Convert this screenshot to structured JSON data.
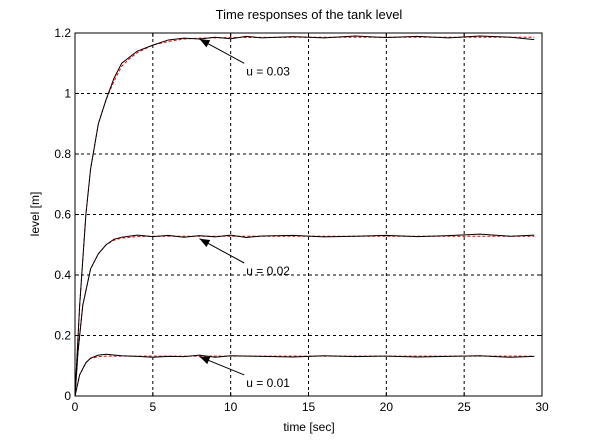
{
  "chart_data": {
    "type": "line",
    "title": "Time responses of the tank level",
    "xlabel": "time [sec]",
    "ylabel": "level [m]",
    "xlim": [
      0,
      30
    ],
    "ylim": [
      0,
      1.2
    ],
    "xticks": [
      0,
      5,
      10,
      15,
      20,
      25,
      30
    ],
    "xtick_labels": [
      "0",
      "5",
      "10",
      "15",
      "20",
      "25",
      "30"
    ],
    "yticks": [
      0,
      0.2,
      0.4,
      0.6,
      0.8,
      1,
      1.2
    ],
    "ytick_labels": [
      "0",
      "0.2",
      "0.4",
      "0.6",
      "0.8",
      "1",
      "1.2"
    ],
    "grid": true,
    "colors": {
      "measured": "#000000",
      "model": "#ff0000",
      "grid": "#000000"
    },
    "series": [
      {
        "group": "u = 0.01",
        "line": "measured",
        "x": [
          0,
          0.3,
          0.7,
          1,
          1.5,
          2,
          3,
          4,
          5,
          6,
          7,
          8,
          9,
          10,
          12,
          14,
          16,
          18,
          20,
          22,
          24,
          26,
          28,
          29.5
        ],
        "y": [
          0,
          0.07,
          0.11,
          0.125,
          0.135,
          0.138,
          0.133,
          0.131,
          0.128,
          0.131,
          0.13,
          0.135,
          0.128,
          0.133,
          0.131,
          0.129,
          0.133,
          0.13,
          0.132,
          0.129,
          0.131,
          0.133,
          0.128,
          0.131
        ]
      },
      {
        "group": "u = 0.01",
        "line": "model",
        "x": [
          0,
          0.3,
          0.7,
          1,
          1.5,
          2,
          3,
          4,
          5,
          7,
          10,
          15,
          20,
          25,
          29.5
        ],
        "y": [
          0,
          0.07,
          0.11,
          0.124,
          0.13,
          0.132,
          0.132,
          0.132,
          0.132,
          0.132,
          0.132,
          0.132,
          0.132,
          0.132,
          0.132
        ]
      },
      {
        "group": "u = 0.02",
        "line": "measured",
        "x": [
          0,
          0.2,
          0.5,
          1,
          1.5,
          2,
          2.5,
          3,
          4,
          5,
          6,
          7,
          8,
          9,
          10,
          11,
          12,
          14,
          16,
          18,
          20,
          22,
          24,
          26,
          28,
          29.5
        ],
        "y": [
          0,
          0.15,
          0.3,
          0.42,
          0.47,
          0.5,
          0.518,
          0.525,
          0.532,
          0.527,
          0.531,
          0.525,
          0.53,
          0.526,
          0.532,
          0.524,
          0.529,
          0.531,
          0.526,
          0.528,
          0.531,
          0.527,
          0.53,
          0.535,
          0.528,
          0.532
        ]
      },
      {
        "group": "u = 0.02",
        "line": "model",
        "x": [
          0,
          0.2,
          0.5,
          1,
          1.5,
          2,
          2.5,
          3,
          4,
          5,
          7,
          10,
          15,
          20,
          25,
          29.5
        ],
        "y": [
          0,
          0.15,
          0.3,
          0.42,
          0.47,
          0.5,
          0.515,
          0.522,
          0.527,
          0.528,
          0.528,
          0.528,
          0.528,
          0.528,
          0.528,
          0.528
        ]
      },
      {
        "group": "u = 0.03",
        "line": "measured",
        "x": [
          0,
          0.3,
          0.7,
          1,
          1.5,
          2,
          2.5,
          3,
          3.5,
          4,
          5,
          6,
          7,
          8,
          9,
          10,
          11,
          12,
          14,
          16,
          18,
          20,
          22,
          24,
          26,
          28,
          29.5
        ],
        "y": [
          0,
          0.3,
          0.6,
          0.75,
          0.9,
          0.98,
          1.05,
          1.1,
          1.12,
          1.14,
          1.16,
          1.177,
          1.183,
          1.18,
          1.186,
          1.181,
          1.189,
          1.184,
          1.188,
          1.184,
          1.19,
          1.185,
          1.189,
          1.184,
          1.19,
          1.186,
          1.178
        ]
      },
      {
        "group": "u = 0.03",
        "line": "model",
        "x": [
          0,
          0.3,
          0.7,
          1,
          1.5,
          2,
          2.5,
          3,
          3.5,
          4,
          5,
          6,
          7,
          8,
          10,
          15,
          20,
          25,
          29.5
        ],
        "y": [
          0,
          0.3,
          0.6,
          0.75,
          0.9,
          0.98,
          1.04,
          1.09,
          1.115,
          1.135,
          1.16,
          1.172,
          1.18,
          1.183,
          1.185,
          1.186,
          1.186,
          1.186,
          1.186
        ]
      }
    ],
    "annotations": [
      {
        "text": "u = 0.03",
        "point": [
          8,
          1.18
        ],
        "text_at": [
          11,
          1.06
        ]
      },
      {
        "text": "u = 0.02",
        "point": [
          8,
          0.52
        ],
        "text_at": [
          11,
          0.4
        ]
      },
      {
        "text": "u = 0.01",
        "point": [
          8,
          0.13
        ],
        "text_at": [
          11,
          0.03
        ]
      }
    ]
  }
}
